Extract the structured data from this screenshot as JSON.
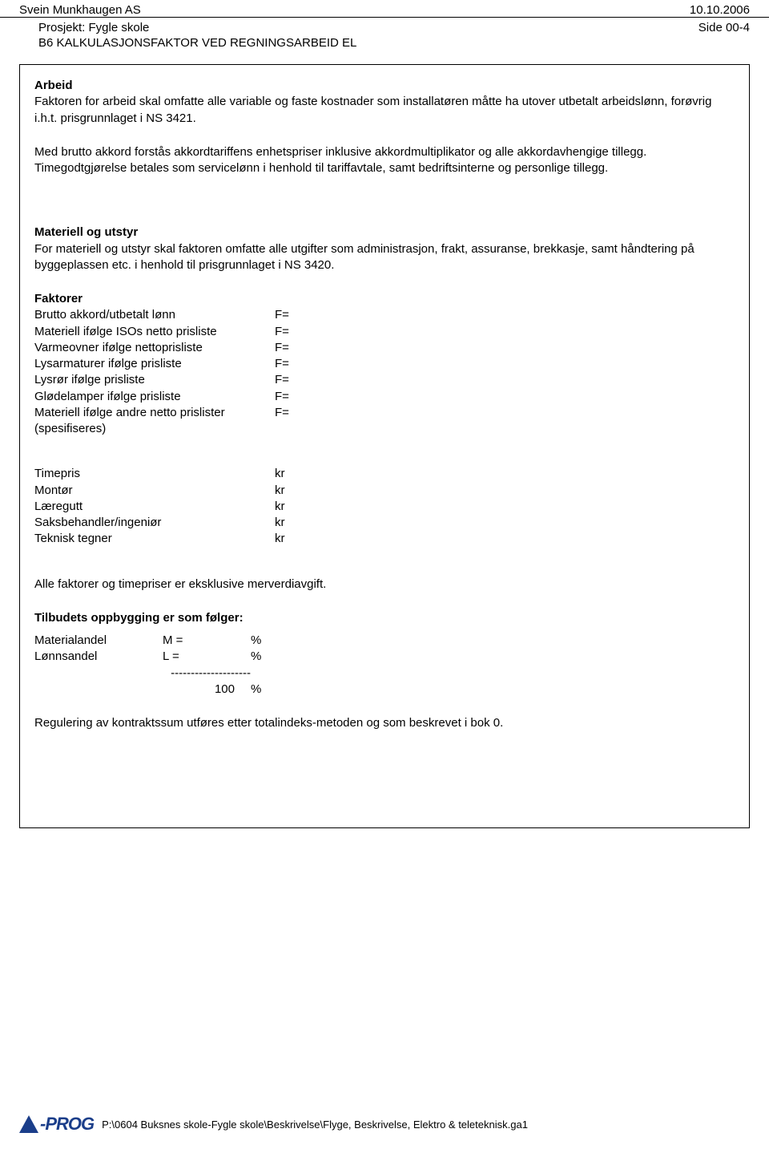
{
  "header": {
    "company": "Svein Munkhaugen AS",
    "date": "10.10.2006",
    "project_label": "Prosjekt: Fygle skole",
    "page_ref": "Side 00-4",
    "subtitle": "B6 KALKULASJONSFAKTOR VED REGNINGSARBEID EL"
  },
  "arbeid": {
    "heading": "Arbeid",
    "p1": "Faktoren for arbeid skal omfatte alle variable og faste kostnader som installatøren måtte ha utover utbetalt arbeidslønn, forøvrig i.h.t. prisgrunnlaget i NS 3421.",
    "p2": "Med brutto akkord forstås akkordtariffens enhetspriser inklusive akkordmultiplikator og alle akkordavhengige tillegg. Timegodtgjørelse betales som servicelønn i henhold til tariffavtale, samt bedriftsinterne og personlige tillegg."
  },
  "materiell": {
    "heading": "Materiell og utstyr",
    "p1": "For materiell og utstyr skal faktoren omfatte alle utgifter som administrasjon, frakt, assuranse, brekkasje, samt håndtering på byggeplassen etc. i henhold til prisgrunnlaget i NS 3420."
  },
  "faktorer": {
    "heading": "Faktorer",
    "rows": [
      {
        "label": "Brutto akkord/utbetalt lønn",
        "val": "F="
      },
      {
        "label": "Materiell ifølge ISOs netto prisliste",
        "val": "F="
      },
      {
        "label": "Varmeovner ifølge nettoprisliste",
        "val": "F="
      },
      {
        "label": "Lysarmaturer ifølge prisliste",
        "val": "F="
      },
      {
        "label": "Lysrør ifølge prisliste",
        "val": "F="
      },
      {
        "label": "Glødelamper ifølge prisliste",
        "val": "F="
      },
      {
        "label": "Materiell ifølge andre netto prislister",
        "val": "F="
      },
      {
        "label": "(spesifiseres)",
        "val": ""
      }
    ]
  },
  "timepris": {
    "rows": [
      {
        "label": "Timepris",
        "val": "kr"
      },
      {
        "label": "Montør",
        "val": "kr"
      },
      {
        "label": "Læregutt",
        "val": "kr"
      },
      {
        "label": "Saksbehandler/ingeniør",
        "val": "kr"
      },
      {
        "label": "Teknisk tegner",
        "val": "kr"
      }
    ]
  },
  "footer_text": {
    "excl": "Alle faktorer og timepriser er eksklusive merverdiavgift.",
    "struct_heading": "Tilbudets oppbygging er som følger:",
    "rows": [
      {
        "label": "Materialandel",
        "mid": "M =",
        "right": "%"
      },
      {
        "label": "Lønnsandel",
        "mid": "L  =",
        "right": "%"
      }
    ],
    "dash": "--------------------",
    "total_mid": "100",
    "total_right": "%",
    "regulering": "Regulering av kontraktssum utføres etter totalindeks-metoden og som beskrevet i bok 0."
  },
  "footer": {
    "logo_text": "-PROG",
    "path": "P:\\0604 Buksnes skole-Fygle skole\\Beskrivelse\\Flyge, Beskrivelse, Elektro & teleteknisk.ga1"
  }
}
